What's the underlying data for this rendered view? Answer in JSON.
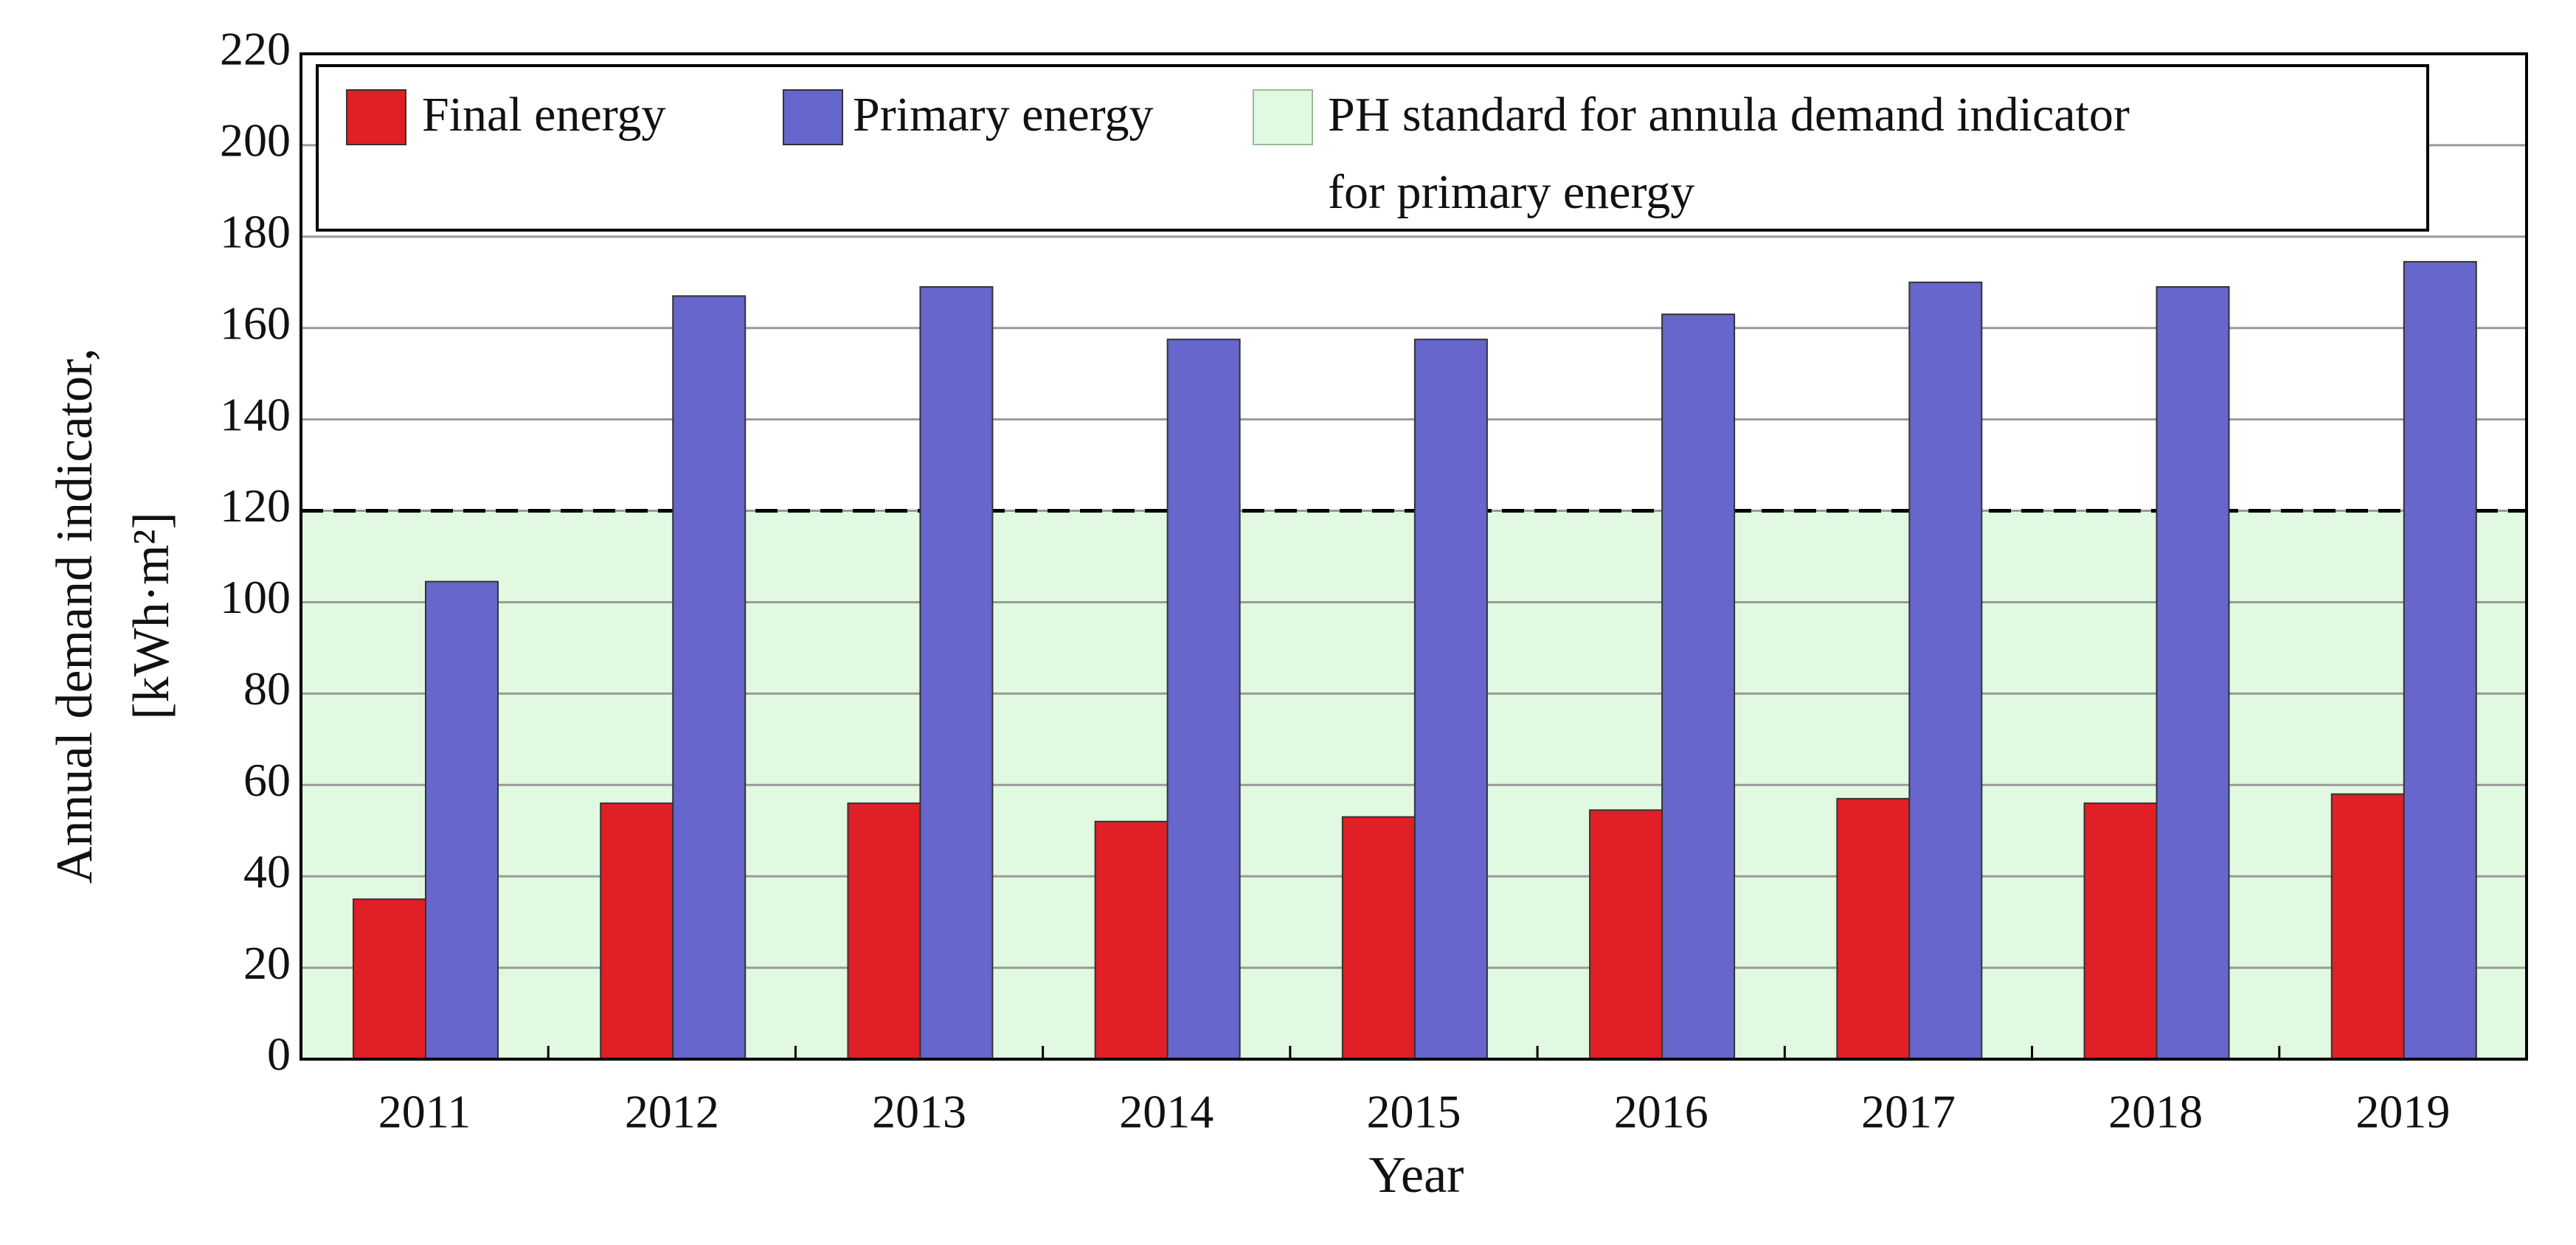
{
  "chart_data": {
    "type": "bar",
    "categories": [
      "2011",
      "2012",
      "2013",
      "2014",
      "2015",
      "2016",
      "2017",
      "2018",
      "2019"
    ],
    "series": [
      {
        "name": "Final energy",
        "color": "#e01f26",
        "values": [
          35,
          56,
          56,
          52,
          53,
          54.5,
          57,
          56,
          58
        ]
      },
      {
        "name": "Primary energy",
        "color": "#6666cc",
        "values": [
          104.5,
          167,
          169,
          157.5,
          157.5,
          163,
          170,
          169,
          174.5
        ]
      }
    ],
    "threshold": {
      "name": [
        "PH standard for annula demand indicator",
        "for primary energy"
      ],
      "value": 120,
      "color": "#e0f9e0"
    },
    "xlabel": "Year",
    "ylabel": [
      "Annual demand indicator,",
      "[kWh·m²]"
    ],
    "ylim": [
      0,
      220
    ],
    "yticks": [
      0,
      20,
      40,
      60,
      80,
      100,
      120,
      140,
      160,
      180,
      200,
      220
    ],
    "grid": true
  }
}
